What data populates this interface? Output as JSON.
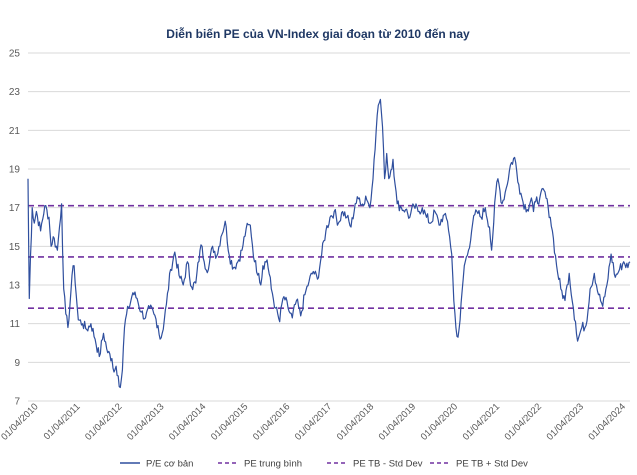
{
  "chart_data": {
    "type": "line",
    "title": "Diễn biến PE của VN-Index giai đoạn từ 2010 đến nay",
    "xlabel": "",
    "ylabel": "",
    "ylim": [
      7,
      25
    ],
    "yticks": [
      "25",
      "23",
      "21",
      "19",
      "17",
      "15",
      "13",
      "11",
      "9",
      "7"
    ],
    "xlim": [
      2010.0,
      2024.35
    ],
    "xticks": [
      "01/04/2010",
      "01/04/2011",
      "01/04/2012",
      "01/04/2013",
      "01/04/2014",
      "01/04/2015",
      "01/04/2016",
      "01/04/2017",
      "01/04/2018",
      "01/04/2019",
      "01/04/2020",
      "01/04/2021",
      "01/04/2022",
      "01/04/2023",
      "01/04/2024"
    ],
    "grid": true,
    "legend_position": "bottom",
    "series": [
      {
        "name": "P/E cơ bản",
        "style": "solid",
        "color": "#2f4f9e",
        "x": [
          2010.0,
          2010.03,
          2010.06,
          2010.1,
          2010.15,
          2010.2,
          2010.3,
          2010.4,
          2010.5,
          2010.55,
          2010.6,
          2010.7,
          2010.75,
          2010.8,
          2010.85,
          2010.9,
          2010.95,
          2011.0,
          2011.05,
          2011.1,
          2011.15,
          2011.2,
          2011.3,
          2011.4,
          2011.5,
          2011.6,
          2011.7,
          2011.8,
          2011.9,
          2012.0,
          2012.05,
          2012.1,
          2012.15,
          2012.2,
          2012.25,
          2012.3,
          2012.35,
          2012.4,
          2012.5,
          2012.6,
          2012.7,
          2012.8,
          2012.9,
          2013.0,
          2013.1,
          2013.15,
          2013.2,
          2013.3,
          2013.4,
          2013.5,
          2013.6,
          2013.7,
          2013.8,
          2013.9,
          2014.0,
          2014.1,
          2014.15,
          2014.2,
          2014.3,
          2014.4,
          2014.5,
          2014.6,
          2014.7,
          2014.8,
          2014.9,
          2015.0,
          2015.1,
          2015.2,
          2015.3,
          2015.4,
          2015.5,
          2015.55,
          2015.6,
          2015.7,
          2015.8,
          2015.9,
          2016.0,
          2016.05,
          2016.1,
          2016.2,
          2016.3,
          2016.4,
          2016.5,
          2016.6,
          2016.7,
          2016.8,
          2016.9,
          2017.0,
          2017.1,
          2017.2,
          2017.3,
          2017.4,
          2017.5,
          2017.6,
          2017.7,
          2017.8,
          2017.9,
          2018.0,
          2018.05,
          2018.1,
          2018.15,
          2018.2,
          2018.25,
          2018.3,
          2018.35,
          2018.4,
          2018.45,
          2018.5,
          2018.55,
          2018.6,
          2018.7,
          2018.75,
          2018.8,
          2018.9,
          2019.0,
          2019.1,
          2019.2,
          2019.3,
          2019.4,
          2019.5,
          2019.6,
          2019.7,
          2019.8,
          2019.9,
          2020.0,
          2020.05,
          2020.1,
          2020.15,
          2020.2,
          2020.25,
          2020.3,
          2020.4,
          2020.5,
          2020.6,
          2020.7,
          2020.8,
          2020.9,
          2021.0,
          2021.05,
          2021.1,
          2021.15,
          2021.2,
          2021.3,
          2021.4,
          2021.5,
          2021.6,
          2021.7,
          2021.8,
          2021.9,
          2022.0,
          2022.05,
          2022.1,
          2022.2,
          2022.3,
          2022.4,
          2022.45,
          2022.5,
          2022.6,
          2022.7,
          2022.8,
          2022.85,
          2022.9,
          2023.0,
          2023.05,
          2023.1,
          2023.2,
          2023.3,
          2023.4,
          2023.5,
          2023.6,
          2023.7,
          2023.75,
          2023.8,
          2023.9,
          2024.0,
          2024.1,
          2024.2,
          2024.3,
          2024.35
        ],
        "values": [
          18.5,
          12.3,
          14.5,
          17.0,
          16.2,
          16.8,
          15.8,
          17.1,
          16.5,
          15.0,
          15.5,
          14.8,
          16.0,
          17.2,
          12.8,
          11.5,
          10.8,
          12.0,
          13.5,
          14.0,
          12.5,
          11.2,
          11.0,
          10.7,
          11.0,
          10.2,
          9.3,
          10.5,
          9.5,
          9.2,
          8.5,
          8.8,
          8.3,
          7.7,
          8.6,
          10.8,
          11.5,
          11.8,
          12.6,
          12.3,
          11.6,
          11.3,
          11.8,
          11.5,
          10.9,
          10.2,
          10.5,
          12.0,
          13.8,
          14.7,
          13.5,
          13.0,
          14.2,
          12.9,
          13.1,
          14.8,
          15.0,
          14.2,
          13.8,
          15.0,
          14.5,
          15.5,
          16.3,
          14.5,
          13.9,
          14.2,
          14.8,
          15.9,
          16.1,
          14.2,
          13.6,
          13.0,
          14.0,
          14.3,
          12.8,
          11.8,
          11.1,
          12.0,
          12.4,
          11.8,
          11.3,
          12.2,
          11.4,
          12.5,
          13.2,
          13.7,
          13.3,
          14.6,
          15.8,
          16.5,
          16.8,
          16.2,
          16.8,
          16.5,
          16.0,
          17.2,
          17.5,
          17.1,
          17.6,
          17.3,
          17.0,
          18.0,
          19.5,
          21.0,
          22.3,
          22.6,
          21.2,
          18.5,
          19.8,
          18.5,
          19.5,
          18.2,
          17.2,
          17.0,
          16.9,
          16.5,
          17.1,
          16.8,
          17.0,
          16.5,
          16.2,
          16.8,
          16.1,
          16.6,
          16.3,
          15.5,
          14.6,
          12.2,
          10.8,
          10.3,
          11.2,
          14.0,
          14.8,
          16.2,
          16.8,
          16.5,
          17.0,
          16.0,
          14.8,
          16.2,
          17.8,
          18.5,
          17.2,
          18.0,
          19.2,
          19.6,
          18.2,
          17.3,
          16.9,
          17.5,
          16.8,
          17.3,
          17.5,
          17.9,
          17.0,
          16.5,
          15.8,
          14.0,
          12.8,
          12.2,
          13.0,
          13.6,
          11.8,
          11.1,
          10.1,
          10.8,
          10.9,
          12.8,
          13.6,
          12.5,
          11.9,
          12.4,
          13.0,
          14.6,
          13.4,
          13.8,
          14.2,
          13.9,
          14.2
        ]
      },
      {
        "name": "PE trung bình",
        "style": "dashed",
        "color": "#7030a0",
        "value": 14.45
      },
      {
        "name": "PE TB - Std Dev",
        "style": "dashed",
        "color": "#7030a0",
        "value": 11.8
      },
      {
        "name": "PE TB + Std Dev",
        "style": "dashed",
        "color": "#7030a0",
        "value": 17.1
      }
    ]
  }
}
